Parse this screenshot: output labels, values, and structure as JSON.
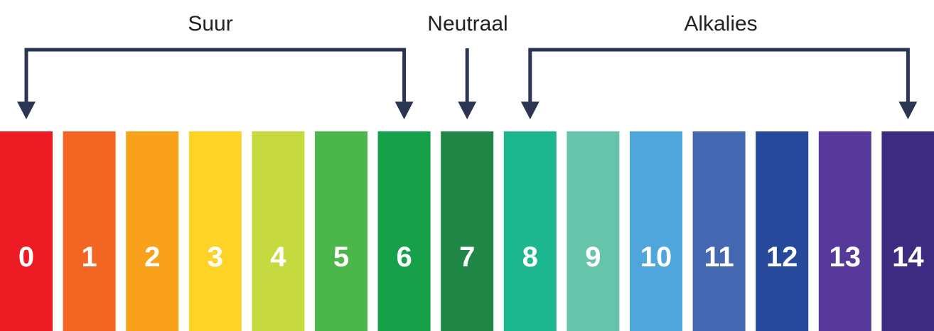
{
  "labels": {
    "acid": "Suur",
    "neutral": "Neutraal",
    "alkaline": "Alkalies"
  },
  "line_color": "#2b3653",
  "scale": [
    {
      "value": "0",
      "color": "#ed1c24"
    },
    {
      "value": "1",
      "color": "#f26522"
    },
    {
      "value": "2",
      "color": "#f9a11b"
    },
    {
      "value": "3",
      "color": "#fdd326"
    },
    {
      "value": "4",
      "color": "#c6d93e"
    },
    {
      "value": "5",
      "color": "#4bb74a"
    },
    {
      "value": "6",
      "color": "#16a04a"
    },
    {
      "value": "7",
      "color": "#1f8646"
    },
    {
      "value": "8",
      "color": "#1cb78f"
    },
    {
      "value": "9",
      "color": "#66c4aa"
    },
    {
      "value": "10",
      "color": "#4fa6dc"
    },
    {
      "value": "11",
      "color": "#4467b1"
    },
    {
      "value": "12",
      "color": "#27499c"
    },
    {
      "value": "13",
      "color": "#56399a"
    },
    {
      "value": "14",
      "color": "#3c2b80"
    }
  ]
}
